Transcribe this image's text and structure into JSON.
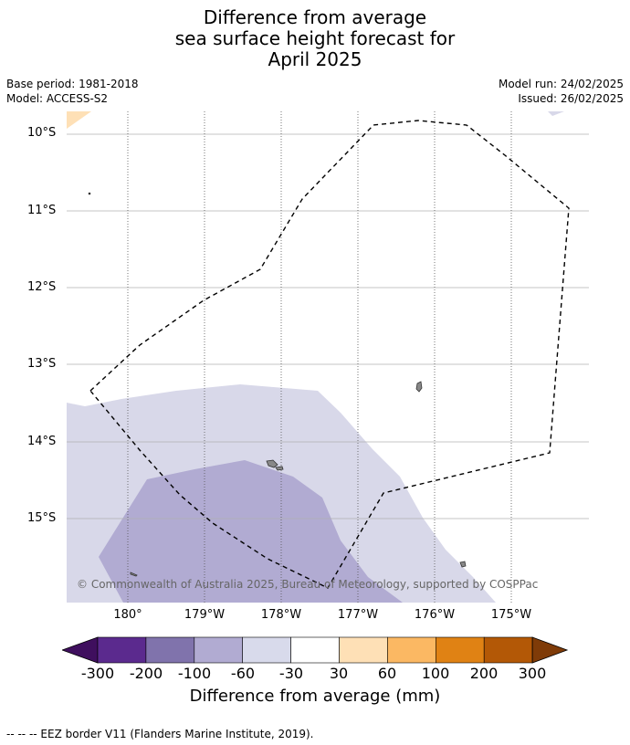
{
  "title": {
    "line1": "Difference from average",
    "line2": "sea surface height forecast for",
    "line3": "April 2025"
  },
  "meta": {
    "base_period": "Base period: 1981-2018",
    "model": "Model: ACCESS-S2",
    "model_run": "Model run: 24/02/2025",
    "issued": "Issued: 26/02/2025"
  },
  "map": {
    "lat_labels": [
      "10°S",
      "11°S",
      "12°S",
      "13°S",
      "14°S",
      "15°S"
    ],
    "lon_labels": [
      "180°",
      "179°W",
      "178°W",
      "177°W",
      "176°W",
      "175°W"
    ],
    "copyright": "© Commonwealth of Australia 2025, Bureau of Meteorology, supported by COSPPac",
    "colors": {
      "ocean": "#ffffff",
      "band_neg_60_neg_30": "#d8d8e9",
      "band_neg_100_neg_60": "#b1abd2",
      "band_30_60": "#fee0b6",
      "land": "#888888",
      "eez_border": "#000000",
      "gridline": "#b0b0b0"
    }
  },
  "colorbar": {
    "label": "Difference from average (mm)",
    "ticks": [
      "-300",
      "-200",
      "-100",
      "-60",
      "-30",
      "30",
      "60",
      "100",
      "200",
      "300"
    ],
    "colors": [
      "#3f0f5e",
      "#5b2a8e",
      "#8073ac",
      "#b1abd2",
      "#d8daeb",
      "#ffffff",
      "#fee0b6",
      "#fbb863",
      "#e08214",
      "#b35806",
      "#7f3b08"
    ]
  },
  "footnote": "--  --  -- EEZ border V11 (Flanders Marine Institute, 2019)."
}
